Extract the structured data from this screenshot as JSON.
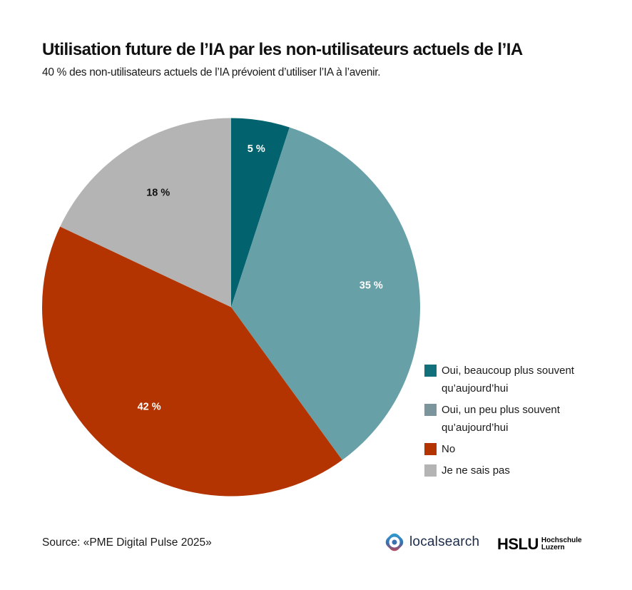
{
  "header": {
    "title": "Utilisation future de l’IA par les non-utilisateurs actuels de l’IA",
    "subtitle": "40 % des non-utilisateurs actuels de l’IA prévoient d’utiliser l’IA à l’avenir."
  },
  "chart_data": {
    "type": "pie",
    "title": "Utilisation future de l’IA par les non-utilisateurs actuels de l’IA",
    "subtitle": "40 % des non-utilisateurs actuels de l’IA prévoient d’utiliser l’IA à l’avenir.",
    "unit": "%",
    "start_angle": "12 o'clock",
    "direction": "clockwise",
    "legend_position": "right-bottom",
    "slices": [
      {
        "label": "Oui, beaucoup plus souvent qu’aujourd’hui",
        "value": 5,
        "data_label": "5 %",
        "color": "#02636e",
        "legend_color": "#12707a",
        "label_color": "#ffffff"
      },
      {
        "label": "Oui, un peu plus souvent qu’aujourd’hui",
        "value": 35,
        "data_label": "35 %",
        "color": "#68a0a8",
        "legend_color": "#7c949c",
        "label_color": "#ffffff"
      },
      {
        "label": "No",
        "value": 42,
        "data_label": "42 %",
        "color": "#b33400",
        "legend_color": "#b33400",
        "label_color": "#ffffff"
      },
      {
        "label": "Je ne sais pas",
        "value": 18,
        "data_label": "18 %",
        "color": "#b3b4b3",
        "legend_color": "#b3b4b3",
        "label_color": "#111111"
      }
    ]
  },
  "legend": {
    "items": [
      {
        "label": "Oui, beaucoup plus souvent qu’aujourd’hui"
      },
      {
        "label": "Oui, un peu plus souvent qu’aujourd’hui"
      },
      {
        "label": "No"
      },
      {
        "label": "Je ne sais pas"
      }
    ]
  },
  "footer": {
    "source": "Source: «PME Digital Pulse 2025»",
    "logo_localsearch": "localsearch",
    "logo_hslu_mark": "HSLU",
    "logo_hslu_line1": "Hochschule",
    "logo_hslu_line2": "Luzern"
  }
}
